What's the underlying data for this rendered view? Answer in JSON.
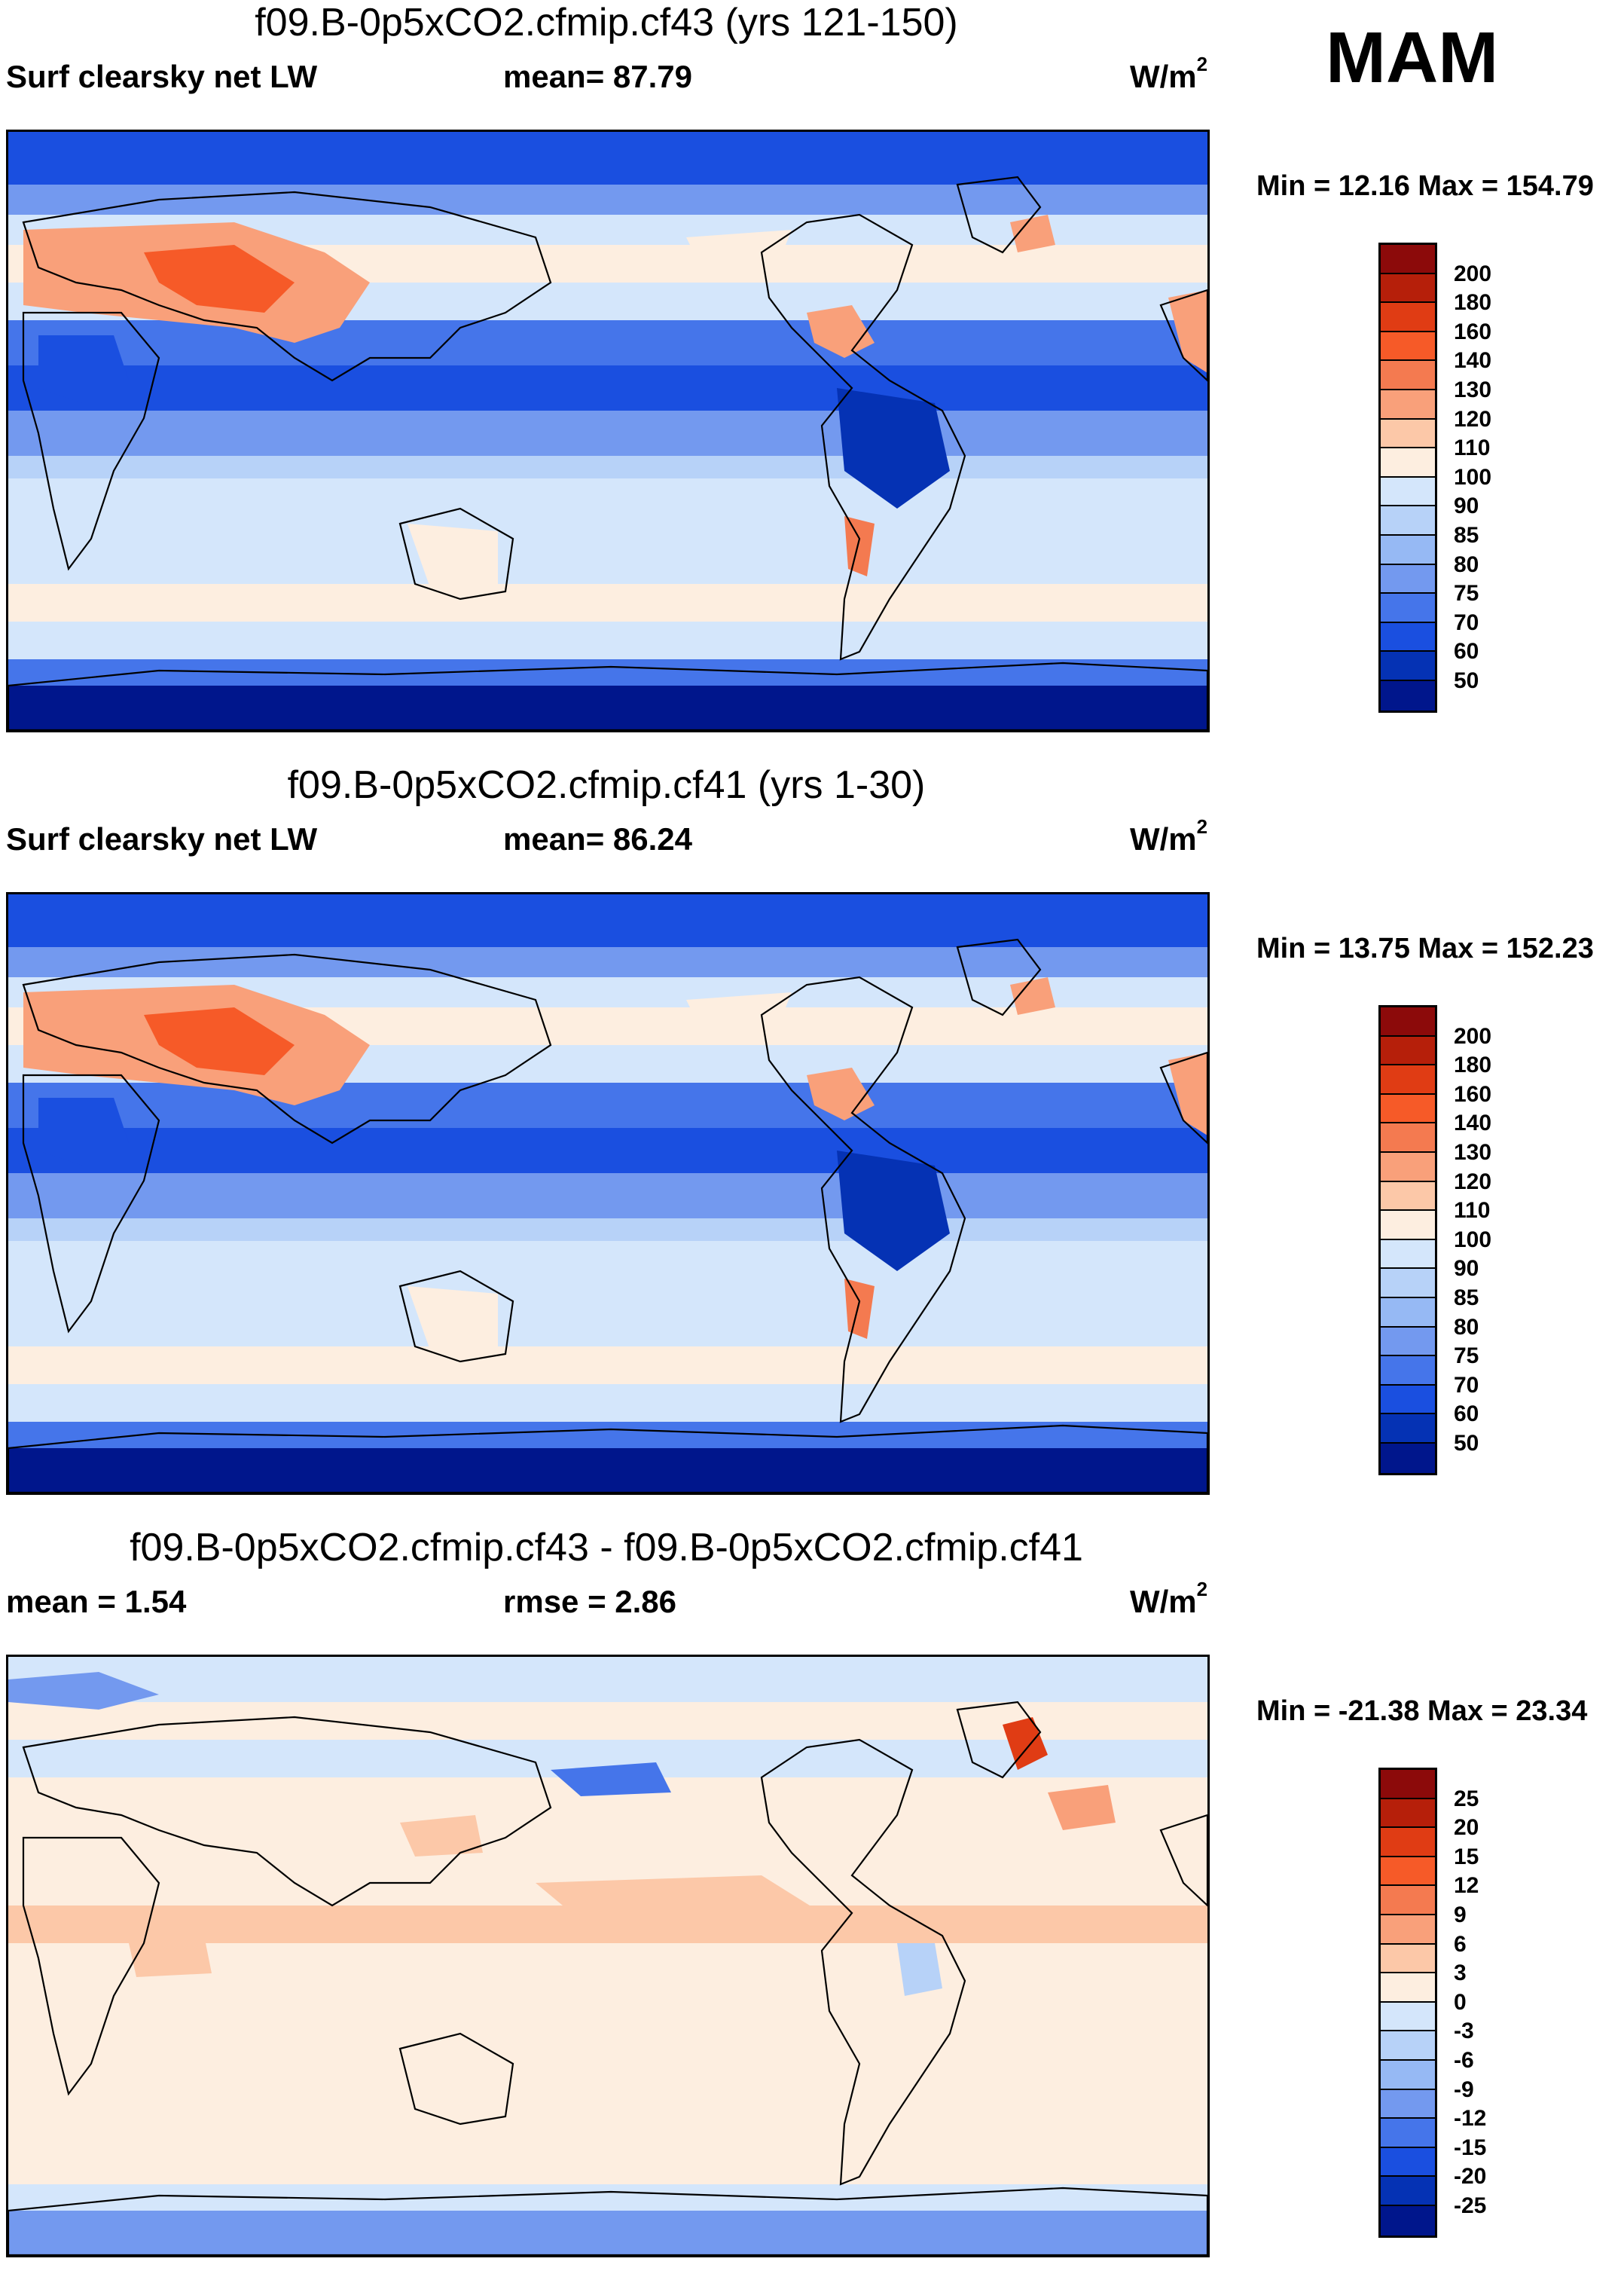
{
  "season": "MAM",
  "panels": [
    {
      "title": "f09.B-0p5xCO2.cfmip.cf43 (yrs 121-150)",
      "left_label": "Surf clearsky net LW",
      "mid_label": "mean=  87.79",
      "units": "W/m",
      "units_exp": "2",
      "minmax": "Min =  12.16 Max = 154.79",
      "levels": [
        "200",
        "180",
        "160",
        "140",
        "130",
        "120",
        "110",
        "100",
        "90",
        "85",
        "80",
        "75",
        "70",
        "60",
        "50"
      ],
      "colors": [
        "#8c0a0a",
        "#b61f0a",
        "#e03c14",
        "#f65a28",
        "#f47a50",
        "#f9a07a",
        "#fcc8a8",
        "#fdeee0",
        "#d4e6fb",
        "#b7d2f8",
        "#96b9f4",
        "#7399ef",
        "#4575ea",
        "#1a4fe0",
        "#0532b4",
        "#00168c"
      ]
    },
    {
      "title": "f09.B-0p5xCO2.cfmip.cf41 (yrs 1-30)",
      "left_label": "Surf clearsky net LW",
      "mid_label": "mean=  86.24",
      "units": "W/m",
      "units_exp": "2",
      "minmax": "Min =  13.75 Max = 152.23",
      "levels": [
        "200",
        "180",
        "160",
        "140",
        "130",
        "120",
        "110",
        "100",
        "90",
        "85",
        "80",
        "75",
        "70",
        "60",
        "50"
      ],
      "colors": [
        "#8c0a0a",
        "#b61f0a",
        "#e03c14",
        "#f65a28",
        "#f47a50",
        "#f9a07a",
        "#fcc8a8",
        "#fdeee0",
        "#d4e6fb",
        "#b7d2f8",
        "#96b9f4",
        "#7399ef",
        "#4575ea",
        "#1a4fe0",
        "#0532b4",
        "#00168c"
      ]
    },
    {
      "title": "f09.B-0p5xCO2.cfmip.cf43 - f09.B-0p5xCO2.cfmip.cf41",
      "left_label": "mean =    1.54",
      "mid_label": "rmse =    2.86",
      "units": "W/m",
      "units_exp": "2",
      "minmax": "Min = -21.38 Max =  23.34",
      "levels": [
        "25",
        "20",
        "15",
        "12",
        "9",
        "6",
        "3",
        "0",
        "-3",
        "-6",
        "-9",
        "-12",
        "-15",
        "-20",
        "-25"
      ],
      "colors": [
        "#8c0a0a",
        "#b61f0a",
        "#e03c14",
        "#f65a28",
        "#f47a50",
        "#f9a07a",
        "#fcc8a8",
        "#fdeee0",
        "#d4e6fb",
        "#b7d2f8",
        "#96b9f4",
        "#7399ef",
        "#4575ea",
        "#1a4fe0",
        "#0532b4",
        "#00168c"
      ]
    }
  ]
}
